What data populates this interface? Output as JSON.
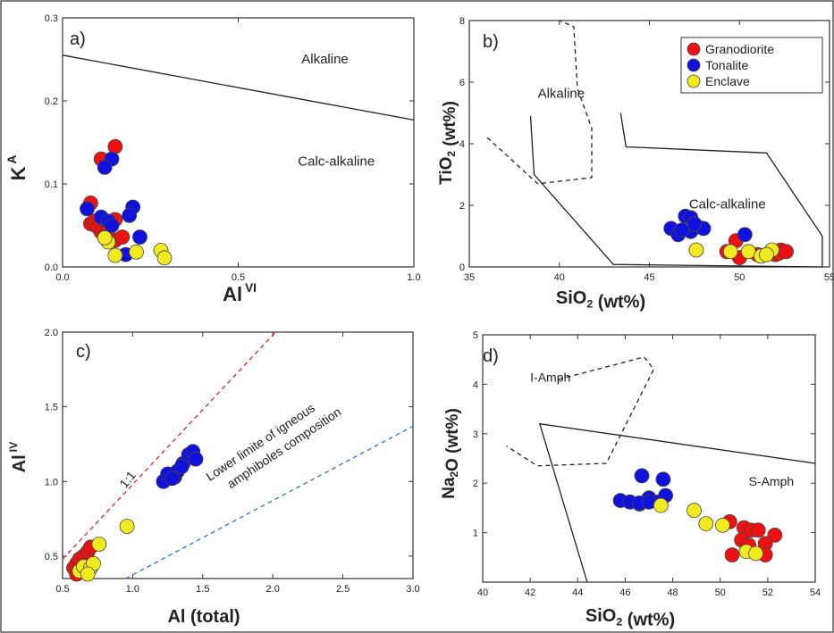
{
  "chart_data": [
    {
      "type": "scatter",
      "panel": "a)",
      "xlabel": "Al",
      "xlabel_sup": "VI",
      "ylabel": "K",
      "ylabel_sup": "A",
      "xlim": [
        0.0,
        1.0
      ],
      "ylim": [
        0.0,
        0.3
      ],
      "xticks": [
        "0.0",
        "0.5",
        "1.0"
      ],
      "yticks": [
        "0.0",
        "0.1",
        "0.2",
        "0.3"
      ],
      "x_tick_values": [
        0.0,
        0.5,
        1.0
      ],
      "y_tick_values": [
        0.0,
        0.1,
        0.2,
        0.3
      ],
      "boundaries": [
        {
          "style": "solid",
          "points": [
            [
              0.0,
              0.255
            ],
            [
              1.0,
              0.177
            ]
          ]
        }
      ],
      "annotations": [
        {
          "text": "Alkaline",
          "x": 0.68,
          "y": 0.245
        },
        {
          "text": "Calc-alkaline",
          "x": 0.67,
          "y": 0.122
        }
      ],
      "series": [
        {
          "name": "Granodiorite",
          "color": "#ee1111",
          "points": [
            [
              0.15,
              0.145
            ],
            [
              0.11,
              0.13
            ],
            [
              0.08,
              0.077
            ],
            [
              0.15,
              0.057
            ],
            [
              0.08,
              0.052
            ],
            [
              0.09,
              0.055
            ],
            [
              0.1,
              0.048
            ],
            [
              0.11,
              0.042
            ],
            [
              0.12,
              0.038
            ],
            [
              0.15,
              0.032
            ],
            [
              0.17,
              0.036
            ],
            [
              0.13,
              0.045
            ]
          ]
        },
        {
          "name": "Tonalite",
          "color": "#1111dd",
          "points": [
            [
              0.14,
              0.13
            ],
            [
              0.12,
              0.12
            ],
            [
              0.07,
              0.07
            ],
            [
              0.11,
              0.06
            ],
            [
              0.13,
              0.055
            ],
            [
              0.2,
              0.072
            ],
            [
              0.19,
              0.062
            ],
            [
              0.14,
              0.05
            ],
            [
              0.22,
              0.036
            ],
            [
              0.18,
              0.015
            ]
          ]
        },
        {
          "name": "Enclave",
          "color": "#f2ea20",
          "points": [
            [
              0.28,
              0.02
            ],
            [
              0.29,
              0.011
            ],
            [
              0.21,
              0.018
            ],
            [
              0.15,
              0.014
            ],
            [
              0.13,
              0.03
            ],
            [
              0.12,
              0.035
            ]
          ]
        }
      ]
    },
    {
      "type": "scatter",
      "panel": "b)",
      "xlabel": "SiO2 (wt%)",
      "ylabel": "TiO2 (wt%)",
      "xlim": [
        35,
        55
      ],
      "ylim": [
        0,
        8
      ],
      "xticks": [
        "35",
        "40",
        "45",
        "50",
        "55"
      ],
      "yticks": [
        "0",
        "2",
        "4",
        "6",
        "8"
      ],
      "x_tick_values": [
        35,
        40,
        45,
        50,
        55
      ],
      "y_tick_values": [
        0,
        2,
        4,
        6,
        8
      ],
      "boundaries": [
        {
          "style": "dashed",
          "points": [
            [
              36.0,
              4.2
            ],
            [
              38.8,
              2.7
            ],
            [
              41.8,
              2.9
            ],
            [
              41.8,
              4.5
            ],
            [
              41.0,
              5.8
            ],
            [
              40.8,
              7.8
            ],
            [
              40.0,
              8.0
            ]
          ]
        },
        {
          "style": "solid",
          "points": [
            [
              38.4,
              4.9
            ],
            [
              38.6,
              3.0
            ],
            [
              43.0,
              0.08
            ],
            [
              54.6,
              0.0
            ],
            [
              54.6,
              1.0
            ],
            [
              51.5,
              3.7
            ],
            [
              43.7,
              3.9
            ],
            [
              43.4,
              5.0
            ]
          ]
        }
      ],
      "annotations": [
        {
          "text": "Alkaline",
          "x": 38.8,
          "y": 5.5
        },
        {
          "text": "Calc-alkaline",
          "x": 47.2,
          "y": 1.9
        }
      ],
      "legend": {
        "position": "top-right",
        "entries": [
          "Granodiorite",
          "Tonalite",
          "Enclave"
        ]
      },
      "series": [
        {
          "name": "Granodiorite",
          "color": "#ee1111",
          "points": [
            [
              52.3,
              0.55
            ],
            [
              52.0,
              0.4
            ],
            [
              52.2,
              0.45
            ],
            [
              51.5,
              0.4
            ],
            [
              51.0,
              0.4
            ],
            [
              50.5,
              0.5
            ],
            [
              49.8,
              0.85
            ],
            [
              49.3,
              0.5
            ],
            [
              50.0,
              0.3
            ],
            [
              52.6,
              0.5
            ]
          ]
        },
        {
          "name": "Tonalite",
          "color": "#1111dd",
          "points": [
            [
              46.2,
              1.25
            ],
            [
              46.6,
              1.05
            ],
            [
              47.0,
              1.65
            ],
            [
              47.3,
              1.6
            ],
            [
              47.7,
              1.3
            ],
            [
              47.3,
              1.15
            ],
            [
              48.0,
              1.25
            ],
            [
              47.5,
              1.4
            ],
            [
              50.3,
              1.05
            ],
            [
              46.8,
              1.2
            ]
          ]
        },
        {
          "name": "Enclave",
          "color": "#f2ea20",
          "points": [
            [
              47.6,
              0.55
            ],
            [
              49.5,
              0.5
            ],
            [
              50.5,
              0.5
            ],
            [
              51.2,
              0.35
            ],
            [
              51.8,
              0.55
            ],
            [
              51.5,
              0.4
            ]
          ]
        }
      ]
    },
    {
      "type": "scatter",
      "panel": "c)",
      "xlabel": "Al (total)",
      "ylabel": "Al",
      "ylabel_sup": "IV",
      "xlim": [
        0.5,
        3.0
      ],
      "ylim": [
        0.35,
        2.0
      ],
      "xticks": [
        "0.5",
        "1.0",
        "1.5",
        "2.0",
        "2.5",
        "3.0"
      ],
      "yticks": [
        "0.5",
        "1.0",
        "1.5",
        "2.0"
      ],
      "x_tick_values": [
        0.5,
        1.0,
        1.5,
        2.0,
        2.5,
        3.0
      ],
      "y_tick_values": [
        0.5,
        1.0,
        1.5,
        2.0
      ],
      "boundaries": [
        {
          "style": "dashed",
          "color": "#e52222",
          "points": [
            [
              0.5,
              0.48
            ],
            [
              2.02,
              2.0
            ]
          ]
        },
        {
          "style": "dashed",
          "color": "#2277dd",
          "points": [
            [
              0.95,
              0.35
            ],
            [
              3.0,
              1.37
            ]
          ]
        }
      ],
      "annotations": [
        {
          "text": "1:1",
          "x": 0.95,
          "y": 0.95
        },
        {
          "text": "Lower limite of igneous",
          "x": 1.55,
          "y": 1.0
        },
        {
          "text": "amphiboles composition",
          "x": 1.7,
          "y": 0.95
        }
      ],
      "series": [
        {
          "name": "Granodiorite",
          "color": "#ee1111",
          "points": [
            [
              0.58,
              0.42
            ],
            [
              0.6,
              0.45
            ],
            [
              0.62,
              0.48
            ],
            [
              0.65,
              0.5
            ],
            [
              0.68,
              0.53
            ],
            [
              0.7,
              0.56
            ],
            [
              0.6,
              0.38
            ],
            [
              0.65,
              0.4
            ]
          ]
        },
        {
          "name": "Tonalite",
          "color": "#1111dd",
          "points": [
            [
              1.22,
              1.0
            ],
            [
              1.25,
              1.05
            ],
            [
              1.3,
              1.03
            ],
            [
              1.32,
              1.07
            ],
            [
              1.36,
              1.12
            ],
            [
              1.4,
              1.18
            ],
            [
              1.43,
              1.2
            ],
            [
              1.45,
              1.15
            ],
            [
              1.35,
              1.1
            ],
            [
              1.28,
              1.02
            ]
          ]
        },
        {
          "name": "Enclave",
          "color": "#f2ea20",
          "points": [
            [
              0.62,
              0.4
            ],
            [
              0.65,
              0.43
            ],
            [
              0.7,
              0.42
            ],
            [
              0.72,
              0.45
            ],
            [
              0.76,
              0.58
            ],
            [
              0.96,
              0.7
            ],
            [
              0.68,
              0.38
            ]
          ]
        }
      ]
    },
    {
      "type": "scatter",
      "panel": "d)",
      "xlabel": "SiO2 (wt%)",
      "ylabel": "Na2O (wt%)",
      "xlim": [
        40,
        54
      ],
      "ylim": [
        0,
        5
      ],
      "xticks": [
        "40",
        "42",
        "44",
        "46",
        "48",
        "50",
        "52",
        "54"
      ],
      "yticks": [
        "1",
        "2",
        "3",
        "4",
        "5"
      ],
      "x_tick_values": [
        40,
        42,
        44,
        46,
        48,
        50,
        52,
        54
      ],
      "y_tick_values": [
        1,
        2,
        3,
        4,
        5
      ],
      "boundaries": [
        {
          "style": "dashed",
          "points": [
            [
              43.2,
              4.1
            ],
            [
              46.8,
              4.55
            ],
            [
              47.2,
              4.3
            ],
            [
              45.2,
              2.4
            ],
            [
              42.3,
              2.35
            ],
            [
              41.0,
              2.75
            ]
          ]
        },
        {
          "style": "solid",
          "points": [
            [
              44.4,
              0.0
            ],
            [
              42.4,
              3.2
            ],
            [
              54.0,
              2.4
            ]
          ]
        }
      ],
      "annotations": [
        {
          "text": "I-Amph",
          "x": 42.0,
          "y": 4.05
        },
        {
          "text": "S-Amph",
          "x": 51.2,
          "y": 1.95
        }
      ],
      "series": [
        {
          "name": "Granodiorite",
          "color": "#ee1111",
          "points": [
            [
              50.4,
              1.22
            ],
            [
              51.0,
              1.1
            ],
            [
              51.3,
              1.05
            ],
            [
              51.6,
              1.05
            ],
            [
              52.3,
              0.95
            ],
            [
              51.9,
              0.78
            ],
            [
              50.9,
              0.85
            ],
            [
              50.5,
              0.55
            ],
            [
              51.9,
              0.55
            ],
            [
              51.2,
              0.75
            ]
          ]
        },
        {
          "name": "Tonalite",
          "color": "#1111dd",
          "points": [
            [
              45.8,
              1.65
            ],
            [
              46.2,
              1.62
            ],
            [
              46.6,
              1.58
            ],
            [
              46.7,
              2.15
            ],
            [
              47.0,
              1.7
            ],
            [
              47.4,
              1.62
            ],
            [
              47.6,
              2.08
            ],
            [
              47.7,
              1.75
            ],
            [
              46.6,
              1.6
            ],
            [
              47.0,
              1.62
            ]
          ]
        },
        {
          "name": "Enclave",
          "color": "#f2ea20",
          "points": [
            [
              47.5,
              1.55
            ],
            [
              48.9,
              1.45
            ],
            [
              49.4,
              1.18
            ],
            [
              50.1,
              1.15
            ],
            [
              51.1,
              0.62
            ],
            [
              51.5,
              0.58
            ]
          ]
        }
      ]
    }
  ]
}
